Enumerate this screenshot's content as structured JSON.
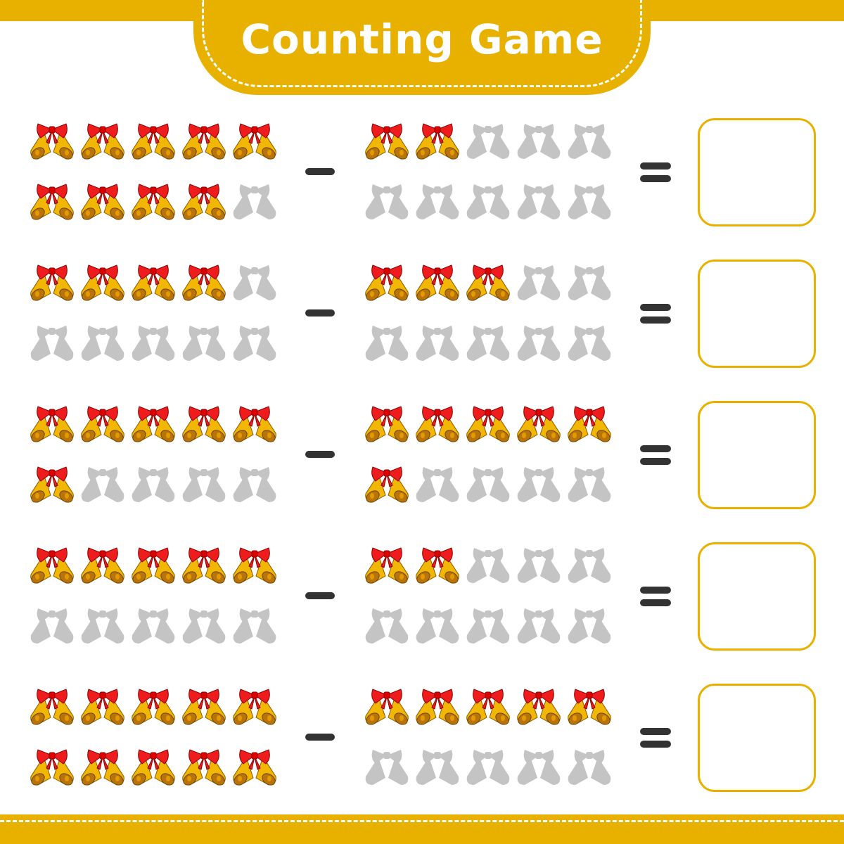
{
  "header": {
    "title": "Counting Game"
  },
  "colors": {
    "accent": "#E8B100",
    "bell": "#F2B705",
    "bow": "#EE1C1C",
    "placeholder": "#C4C4C4",
    "operator": "#333333"
  },
  "icons": {
    "item": "christmas-bells-icon",
    "placeholder": "bell-silhouette-icon"
  },
  "slots_per_group": 10,
  "problems": [
    {
      "left_count": 9,
      "operator": "minus",
      "right_count": 2,
      "answer": ""
    },
    {
      "left_count": 4,
      "operator": "minus",
      "right_count": 3,
      "answer": ""
    },
    {
      "left_count": 6,
      "operator": "minus",
      "right_count": 6,
      "answer": ""
    },
    {
      "left_count": 5,
      "operator": "minus",
      "right_count": 2,
      "answer": ""
    },
    {
      "left_count": 10,
      "operator": "minus",
      "right_count": 5,
      "answer": ""
    }
  ]
}
